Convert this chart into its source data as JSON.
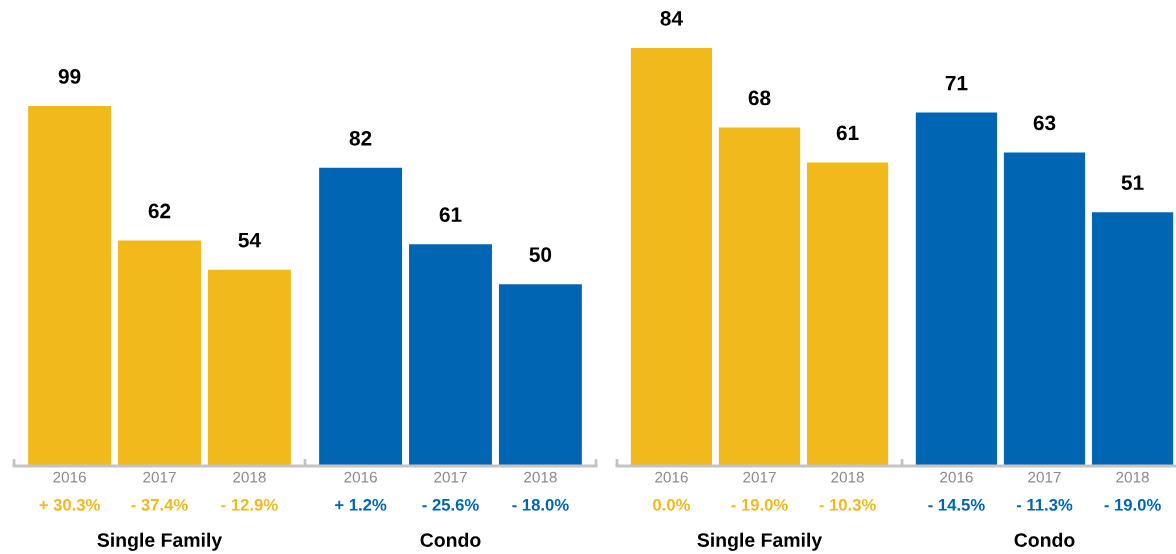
{
  "chart_data": [
    {
      "type": "bar",
      "categories": [
        "Single Family",
        "Condo"
      ],
      "series": [
        {
          "name": "2016",
          "colors": [
            "#f2b91c",
            "#0066b3"
          ],
          "values": [
            99,
            82
          ]
        },
        {
          "name": "2017",
          "colors": [
            "#f2b91c",
            "#0066b3"
          ],
          "values": [
            62,
            61
          ]
        },
        {
          "name": "2018",
          "colors": [
            "#f2b91c",
            "#0066b3"
          ],
          "values": [
            54,
            50
          ]
        }
      ],
      "tick_labels": "x",
      "data_labels": true,
      "annotations": [
        "+ 30.3%",
        "- 37.4%",
        "- 12.9%",
        "+ 1.2%",
        "- 25.6%",
        "- 18.0%"
      ]
    },
    {
      "type": "bar",
      "categories": [
        "Single Family",
        "Condo"
      ],
      "series": [
        {
          "name": "2016",
          "colors": [
            "#f2b91c",
            "#0066b3"
          ],
          "values": [
            84,
            71
          ]
        },
        {
          "name": "2017",
          "colors": [
            "#f2b91c",
            "#0066b3"
          ],
          "values": [
            68,
            63
          ]
        },
        {
          "name": "2018",
          "colors": [
            "#f2b91c",
            "#0066b3"
          ],
          "values": [
            61,
            51
          ]
        }
      ],
      "tick_labels": "x",
      "data_labels": true,
      "annotations": [
        "0.0%",
        "- 19.0%",
        "- 10.3%",
        "- 14.5%",
        "- 11.3%",
        "- 19.0%"
      ]
    }
  ]
}
